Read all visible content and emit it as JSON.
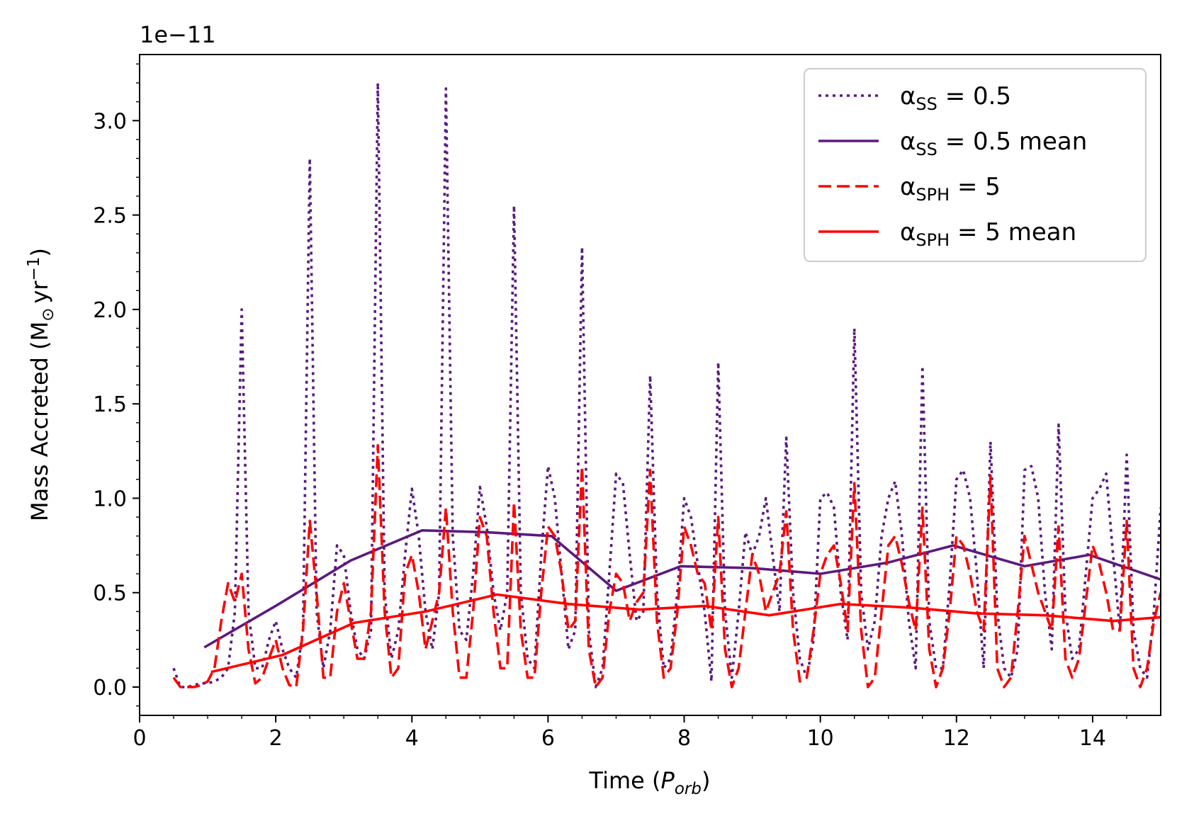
{
  "chart_data": {
    "type": "line",
    "title": "",
    "offset_label": "1e−11",
    "xlabel": {
      "prefix": "Time (",
      "var": "P",
      "sub": "orb",
      "suffix": ")"
    },
    "ylabel": {
      "text": "Mass Accreted (M",
      "sub": "⊙",
      "mid": "yr",
      "sup": "−1",
      "suffix": ")"
    },
    "xlim": [
      0,
      15
    ],
    "ylim": [
      -0.15,
      3.35
    ],
    "x_ticks": [
      0,
      2,
      4,
      6,
      8,
      10,
      12,
      14
    ],
    "x_tick_labels": [
      "0",
      "2",
      "4",
      "6",
      "8",
      "10",
      "12",
      "14"
    ],
    "y_ticks": [
      0.0,
      0.5,
      1.0,
      1.5,
      2.0,
      2.5,
      3.0
    ],
    "y_tick_labels": [
      "0.0",
      "0.5",
      "1.0",
      "1.5",
      "2.0",
      "2.5",
      "3.0"
    ],
    "grid": false,
    "legend_position": "top-right",
    "series": [
      {
        "name": "αSS = 0.5",
        "legend": {
          "greek": "α",
          "sub": "SS",
          "rest": " = 0.5"
        },
        "color": "#5b1a7e",
        "style": "dotted",
        "x": [
          0.5,
          0.6,
          0.7,
          0.8,
          0.9,
          1.0,
          1.1,
          1.2,
          1.3,
          1.4,
          1.5,
          1.6,
          1.7,
          1.8,
          1.9,
          2.0,
          2.1,
          2.2,
          2.3,
          2.4,
          2.5,
          2.6,
          2.7,
          2.8,
          2.9,
          3.0,
          3.1,
          3.2,
          3.3,
          3.4,
          3.5,
          3.6,
          3.7,
          3.8,
          3.9,
          4.0,
          4.1,
          4.2,
          4.3,
          4.4,
          4.5,
          4.6,
          4.7,
          4.8,
          4.9,
          5.0,
          5.1,
          5.2,
          5.3,
          5.4,
          5.5,
          5.6,
          5.7,
          5.8,
          5.9,
          6.0,
          6.1,
          6.2,
          6.3,
          6.4,
          6.5,
          6.6,
          6.7,
          6.8,
          6.9,
          7.0,
          7.1,
          7.2,
          7.3,
          7.4,
          7.5,
          7.6,
          7.7,
          7.8,
          7.9,
          8.0,
          8.1,
          8.2,
          8.3,
          8.4,
          8.5,
          8.6,
          8.7,
          8.8,
          8.9,
          9.0,
          9.1,
          9.2,
          9.3,
          9.4,
          9.5,
          9.6,
          9.7,
          9.8,
          9.9,
          10.0,
          10.1,
          10.2,
          10.3,
          10.4,
          10.5,
          10.6,
          10.7,
          10.8,
          10.9,
          11.0,
          11.1,
          11.2,
          11.3,
          11.4,
          11.5,
          11.6,
          11.7,
          11.8,
          11.9,
          12.0,
          12.1,
          12.2,
          12.3,
          12.4,
          12.5,
          12.6,
          12.7,
          12.8,
          12.9,
          13.0,
          13.1,
          13.2,
          13.3,
          13.4,
          13.5,
          13.6,
          13.7,
          13.8,
          13.9,
          14.0,
          14.1,
          14.2,
          14.3,
          14.4,
          14.5,
          14.6,
          14.7,
          14.8,
          14.9,
          15.0
        ],
        "y": [
          0.1,
          0.0,
          0.0,
          0.01,
          0.02,
          0.02,
          0.03,
          0.05,
          0.1,
          0.4,
          2.0,
          0.4,
          0.1,
          0.1,
          0.25,
          0.35,
          0.2,
          0.1,
          0.05,
          0.3,
          2.8,
          0.4,
          0.1,
          0.3,
          0.75,
          0.7,
          0.4,
          0.2,
          0.15,
          0.3,
          3.2,
          0.5,
          0.15,
          0.3,
          0.7,
          1.05,
          0.8,
          0.4,
          0.2,
          0.5,
          3.17,
          0.8,
          0.3,
          0.25,
          0.6,
          1.06,
          0.85,
          0.5,
          0.3,
          0.5,
          2.55,
          0.5,
          0.15,
          0.1,
          0.7,
          1.17,
          1.0,
          0.6,
          0.2,
          0.3,
          2.33,
          0.3,
          0.0,
          0.1,
          0.6,
          1.13,
          1.08,
          0.7,
          0.35,
          0.4,
          1.65,
          0.5,
          0.1,
          0.15,
          0.5,
          1.0,
          0.9,
          0.65,
          0.4,
          0.03,
          1.72,
          0.4,
          0.05,
          0.4,
          0.82,
          0.7,
          0.8,
          1.0,
          0.7,
          0.4,
          1.32,
          0.5,
          0.15,
          0.05,
          0.25,
          1.0,
          1.03,
          0.95,
          0.5,
          0.25,
          1.9,
          0.5,
          0.2,
          0.35,
          0.8,
          1.0,
          1.09,
          0.8,
          0.35,
          0.1,
          1.7,
          0.35,
          0.1,
          0.1,
          0.55,
          1.1,
          1.15,
          1.0,
          0.6,
          0.1,
          1.3,
          0.4,
          0.1,
          0.05,
          0.2,
          1.15,
          1.17,
          1.0,
          0.5,
          0.2,
          1.39,
          0.4,
          0.15,
          0.2,
          0.6,
          1.0,
          1.05,
          1.13,
          0.7,
          0.3,
          1.23,
          0.3,
          0.1,
          0.05,
          0.4,
          0.95
        ]
      },
      {
        "name": "αSS = 0.5 mean",
        "legend": {
          "greek": "α",
          "sub": "SS",
          "rest": " = 0.5 mean"
        },
        "color": "#5b1a7e",
        "style": "solid",
        "x": [
          0.95,
          2.0,
          3.1,
          4.15,
          5.1,
          6.05,
          7.0,
          7.95,
          9.0,
          10.0,
          11.0,
          11.95,
          13.0,
          13.95,
          15.0
        ],
        "y": [
          0.21,
          0.43,
          0.67,
          0.83,
          0.82,
          0.8,
          0.51,
          0.64,
          0.63,
          0.6,
          0.66,
          0.75,
          0.64,
          0.7,
          0.57
        ]
      },
      {
        "name": "αSPH = 5",
        "legend": {
          "greek": "α",
          "sub": "SPH",
          "rest": " = 5"
        },
        "color": "#ff0000",
        "style": "dashed",
        "x": [
          0.5,
          0.6,
          0.7,
          0.8,
          0.9,
          1.0,
          1.1,
          1.2,
          1.3,
          1.4,
          1.5,
          1.6,
          1.7,
          1.8,
          1.9,
          2.0,
          2.1,
          2.2,
          2.3,
          2.4,
          2.5,
          2.6,
          2.7,
          2.8,
          2.9,
          3.0,
          3.1,
          3.2,
          3.3,
          3.4,
          3.5,
          3.6,
          3.7,
          3.8,
          3.9,
          4.0,
          4.1,
          4.2,
          4.3,
          4.4,
          4.5,
          4.6,
          4.7,
          4.8,
          4.9,
          5.0,
          5.1,
          5.2,
          5.3,
          5.4,
          5.5,
          5.6,
          5.7,
          5.8,
          5.9,
          6.0,
          6.1,
          6.2,
          6.3,
          6.4,
          6.5,
          6.6,
          6.7,
          6.8,
          6.9,
          7.0,
          7.1,
          7.2,
          7.3,
          7.4,
          7.5,
          7.6,
          7.7,
          7.8,
          7.9,
          8.0,
          8.1,
          8.2,
          8.3,
          8.4,
          8.5,
          8.6,
          8.7,
          8.8,
          8.9,
          9.0,
          9.1,
          9.2,
          9.3,
          9.4,
          9.5,
          9.6,
          9.7,
          9.8,
          9.9,
          10.0,
          10.1,
          10.2,
          10.3,
          10.4,
          10.5,
          10.6,
          10.7,
          10.8,
          10.9,
          11.0,
          11.1,
          11.2,
          11.3,
          11.4,
          11.5,
          11.6,
          11.7,
          11.8,
          11.9,
          12.0,
          12.1,
          12.2,
          12.3,
          12.4,
          12.5,
          12.6,
          12.7,
          12.8,
          12.9,
          13.0,
          13.1,
          13.2,
          13.3,
          13.4,
          13.5,
          13.6,
          13.7,
          13.8,
          13.9,
          14.0,
          14.1,
          14.2,
          14.3,
          14.4,
          14.5,
          14.6,
          14.7,
          14.8,
          14.9,
          15.0
        ],
        "y": [
          0.05,
          0.0,
          0.0,
          0.0,
          0.01,
          0.03,
          0.1,
          0.35,
          0.55,
          0.45,
          0.6,
          0.2,
          0.02,
          0.05,
          0.15,
          0.25,
          0.1,
          0.01,
          0.0,
          0.3,
          0.88,
          0.5,
          0.05,
          0.05,
          0.4,
          0.55,
          0.35,
          0.15,
          0.15,
          0.4,
          1.28,
          0.4,
          0.05,
          0.1,
          0.6,
          0.7,
          0.5,
          0.2,
          0.35,
          0.5,
          0.95,
          0.4,
          0.05,
          0.05,
          0.4,
          0.9,
          0.8,
          0.4,
          0.1,
          0.1,
          0.98,
          0.3,
          0.05,
          0.05,
          0.5,
          0.85,
          0.8,
          0.6,
          0.3,
          0.35,
          1.17,
          0.2,
          0.0,
          0.05,
          0.4,
          0.6,
          0.55,
          0.35,
          0.45,
          0.5,
          1.15,
          0.35,
          0.05,
          0.1,
          0.4,
          0.85,
          0.75,
          0.6,
          0.55,
          0.3,
          0.9,
          0.2,
          0.0,
          0.1,
          0.4,
          0.7,
          0.6,
          0.4,
          0.5,
          0.6,
          0.93,
          0.3,
          0.03,
          0.05,
          0.3,
          0.6,
          0.7,
          0.75,
          0.55,
          0.3,
          1.08,
          0.3,
          0.0,
          0.05,
          0.4,
          0.75,
          0.8,
          0.65,
          0.45,
          0.3,
          0.95,
          0.2,
          0.0,
          0.1,
          0.4,
          0.8,
          0.75,
          0.6,
          0.4,
          0.3,
          1.12,
          0.1,
          0.0,
          0.05,
          0.4,
          0.8,
          0.65,
          0.5,
          0.4,
          0.3,
          0.85,
          0.15,
          0.05,
          0.15,
          0.45,
          0.75,
          0.65,
          0.5,
          0.3,
          0.3,
          0.88,
          0.1,
          0.0,
          0.1,
          0.35,
          0.5
        ]
      },
      {
        "name": "αSPH = 5 mean",
        "legend": {
          "greek": "α",
          "sub": "SPH",
          "rest": " = 5 mean"
        },
        "color": "#ff0000",
        "style": "solid",
        "x": [
          1.05,
          2.1,
          3.15,
          4.2,
          5.25,
          6.3,
          7.35,
          8.3,
          9.25,
          10.3,
          11.35,
          12.3,
          13.3,
          14.3,
          15.0
        ],
        "y": [
          0.08,
          0.17,
          0.34,
          0.4,
          0.49,
          0.44,
          0.41,
          0.43,
          0.38,
          0.44,
          0.42,
          0.39,
          0.38,
          0.35,
          0.37
        ]
      }
    ]
  }
}
